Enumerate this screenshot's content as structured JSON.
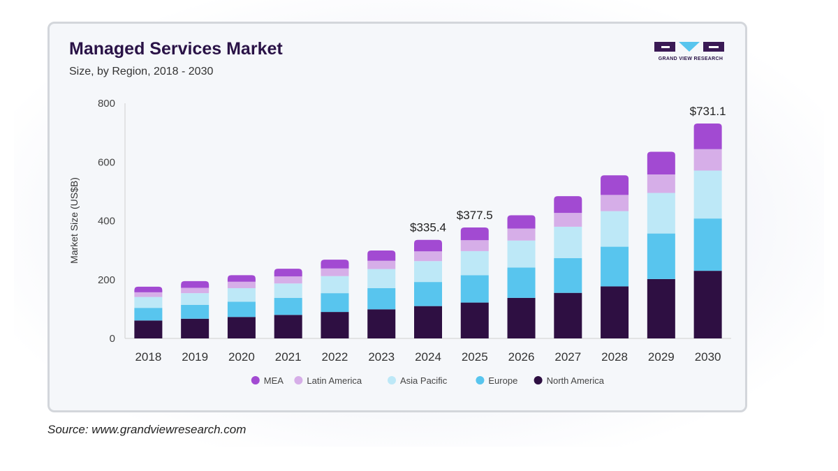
{
  "page": {
    "source_text": "Source: www.grandviewresearch.com",
    "logo_text": "GRAND VIEW RESEARCH"
  },
  "chart_data": {
    "type": "bar",
    "stacked": true,
    "title": "Managed Services Market",
    "subtitle": "Size, by Region, 2018 - 2030",
    "xlabel": "",
    "ylabel": "Market Size (US$B)",
    "ylim": [
      0,
      800
    ],
    "yticks": [
      0,
      200,
      400,
      600,
      800
    ],
    "grid": false,
    "legend_position": "bottom",
    "categories": [
      "2018",
      "2019",
      "2020",
      "2021",
      "2022",
      "2023",
      "2024",
      "2025",
      "2026",
      "2027",
      "2028",
      "2029",
      "2030"
    ],
    "series": [
      {
        "name": "North America",
        "color": "#2e0f42",
        "values": [
          61,
          67,
          73,
          80,
          90,
          99,
          110,
          122,
          138,
          155,
          177,
          202,
          230
        ]
      },
      {
        "name": "Europe",
        "color": "#58c5ee",
        "values": [
          43,
          47,
          52,
          58,
          64,
          72,
          82,
          93,
          103,
          118,
          135,
          155,
          178
        ]
      },
      {
        "name": "Asia Pacific",
        "color": "#bde8f7",
        "values": [
          37,
          40,
          46,
          49,
          58,
          65,
          71,
          82,
          92,
          107,
          121,
          138,
          163
        ]
      },
      {
        "name": "Latin America",
        "color": "#d6aee8",
        "values": [
          16,
          18,
          22,
          24,
          26,
          28,
          33,
          37,
          41,
          47,
          55,
          63,
          73
        ]
      },
      {
        "name": "MEA",
        "color": "#a24ad2",
        "values": [
          19,
          23,
          22,
          26,
          30,
          35,
          39.4,
          43.5,
          45,
          57,
          67,
          77,
          87.1
        ]
      }
    ],
    "annotations": [
      {
        "category": "2024",
        "text": "$335.4"
      },
      {
        "category": "2025",
        "text": "$377.5"
      },
      {
        "category": "2030",
        "text": "$731.1"
      }
    ],
    "legend_order": [
      "MEA",
      "Latin America",
      "Asia Pacific",
      "Europe",
      "North America"
    ]
  }
}
